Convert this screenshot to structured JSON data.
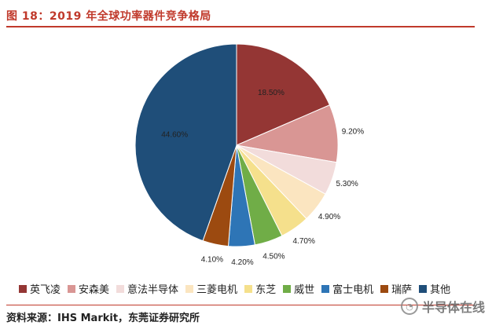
{
  "figure": {
    "title": "图 18：2019 年全球功率器件竞争格局",
    "source": "资料来源：IHS Markit，东莞证券研究所",
    "watermark": "半导体在线"
  },
  "chart_data": {
    "type": "pie",
    "title": "",
    "legend_position": "bottom",
    "start_angle": "12 o'clock, clockwise",
    "slices": [
      {
        "name": "英飞凌",
        "value": 18.5,
        "label": "18.50%",
        "color": "#943634"
      },
      {
        "name": "安森美",
        "value": 9.2,
        "label": "9.20%",
        "color": "#d99694"
      },
      {
        "name": "意法半导体",
        "value": 5.3,
        "label": "5.30%",
        "color": "#f2dcdb"
      },
      {
        "name": "三菱电机",
        "value": 4.9,
        "label": "4.90%",
        "color": "#fbe5c0"
      },
      {
        "name": "东芝",
        "value": 4.7,
        "label": "4.70%",
        "color": "#f5e08c"
      },
      {
        "name": "威世",
        "value": 4.5,
        "label": "4.50%",
        "color": "#70ad47"
      },
      {
        "name": "富士电机",
        "value": 4.2,
        "label": "4.20%",
        "color": "#2e75b6"
      },
      {
        "name": "瑞萨",
        "value": 4.1,
        "label": "4.10%",
        "color": "#9c4a10"
      },
      {
        "name": "其他",
        "value": 44.6,
        "label": "44.60%",
        "color": "#1f4e79"
      }
    ]
  }
}
